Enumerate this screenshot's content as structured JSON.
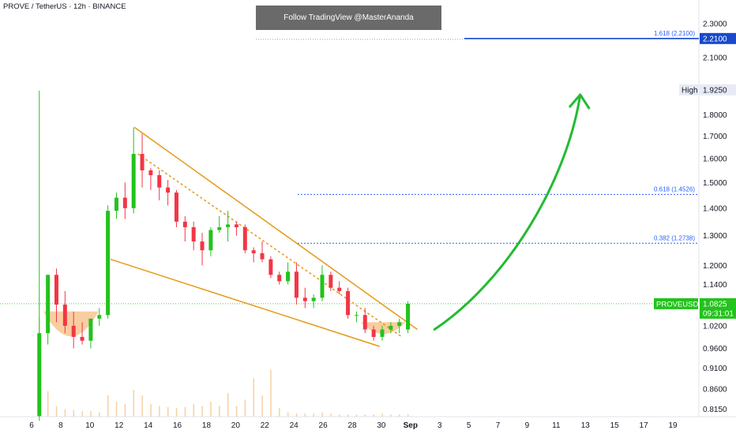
{
  "header": {
    "symbol_title": "PROVE / TetherUS · 12h · BINANCE",
    "banner_text": "Follow TradingView @MasterAnanda"
  },
  "colors": {
    "up": "#22c31b",
    "down": "#f23645",
    "volume": "#f6c48b",
    "wedge": "#e39a17",
    "bowl": "#f7c189",
    "arrow": "#22bb33",
    "fib": "#2962ff",
    "price_tag": "#22c31b"
  },
  "price_axis": {
    "ticks": [
      "2.3000",
      "2.2000",
      "2.1000",
      "1.8000",
      "1.7000",
      "1.6000",
      "1.5000",
      "1.4000",
      "1.3000",
      "1.2000",
      "1.1400",
      "1.0200",
      "0.9600",
      "0.9100",
      "0.8600",
      "0.8150"
    ],
    "high_label": "High",
    "high_value": "1.9250",
    "fib_tag_value": "2.2100",
    "current_value": "1.0825",
    "countdown": "09:31:01",
    "symbol_tag": "PROVEUSDT"
  },
  "fib_levels": [
    {
      "label": "1.618 (2.2100)",
      "price": 2.21,
      "color": "#1848cc"
    },
    {
      "label": "0.618 (1.4526)",
      "price": 1.4526
    },
    {
      "label": "0.382 (1.2738)",
      "price": 1.2738
    }
  ],
  "time_axis": {
    "labels": [
      "6",
      "8",
      "10",
      "12",
      "14",
      "16",
      "18",
      "20",
      "22",
      "24",
      "26",
      "28",
      "30",
      "Sep",
      "3",
      "5",
      "7",
      "9",
      "11",
      "13",
      "15",
      "17",
      "19"
    ]
  },
  "chart_data": {
    "type": "candlestick",
    "symbol": "PROVEUSDT",
    "interval": "12h",
    "y_scale": "log",
    "ylim": [
      0.8,
      2.36
    ],
    "x_day_range": [
      5.3,
      42.7
    ],
    "candles": [
      {
        "day": 5.75,
        "o": 0.8,
        "h": 1.92,
        "l": 0.79,
        "c": 1.0,
        "v": 0.92
      },
      {
        "day": 6.25,
        "o": 1.0,
        "h": 1.17,
        "l": 0.97,
        "c": 1.17,
        "v": 0.24
      },
      {
        "day": 6.75,
        "o": 1.17,
        "h": 1.19,
        "l": 1.03,
        "c": 1.08,
        "v": 0.1
      },
      {
        "day": 7.25,
        "o": 1.08,
        "h": 1.12,
        "l": 1.0,
        "c": 1.02,
        "v": 0.07
      },
      {
        "day": 7.75,
        "o": 1.02,
        "h": 1.06,
        "l": 0.96,
        "c": 0.99,
        "v": 0.06
      },
      {
        "day": 8.25,
        "o": 0.99,
        "h": 1.03,
        "l": 0.97,
        "c": 0.98,
        "v": 0.05
      },
      {
        "day": 8.75,
        "o": 0.98,
        "h": 1.04,
        "l": 0.96,
        "c": 1.04,
        "v": 0.05
      },
      {
        "day": 9.25,
        "o": 1.04,
        "h": 1.07,
        "l": 1.02,
        "c": 1.05,
        "v": 0.04
      },
      {
        "day": 9.75,
        "o": 1.05,
        "h": 1.41,
        "l": 1.04,
        "c": 1.39,
        "v": 0.2
      },
      {
        "day": 10.25,
        "o": 1.39,
        "h": 1.46,
        "l": 1.36,
        "c": 1.44,
        "v": 0.14
      },
      {
        "day": 10.75,
        "o": 1.44,
        "h": 1.5,
        "l": 1.36,
        "c": 1.4,
        "v": 0.12
      },
      {
        "day": 11.25,
        "o": 1.4,
        "h": 1.74,
        "l": 1.38,
        "c": 1.62,
        "v": 0.25
      },
      {
        "day": 11.75,
        "o": 1.62,
        "h": 1.71,
        "l": 1.48,
        "c": 1.55,
        "v": 0.2
      },
      {
        "day": 12.25,
        "o": 1.55,
        "h": 1.56,
        "l": 1.47,
        "c": 1.53,
        "v": 0.12
      },
      {
        "day": 12.75,
        "o": 1.53,
        "h": 1.55,
        "l": 1.43,
        "c": 1.48,
        "v": 0.1
      },
      {
        "day": 13.25,
        "o": 1.48,
        "h": 1.51,
        "l": 1.41,
        "c": 1.46,
        "v": 0.09
      },
      {
        "day": 13.75,
        "o": 1.46,
        "h": 1.47,
        "l": 1.33,
        "c": 1.35,
        "v": 0.08
      },
      {
        "day": 14.25,
        "o": 1.35,
        "h": 1.37,
        "l": 1.28,
        "c": 1.33,
        "v": 0.09
      },
      {
        "day": 14.75,
        "o": 1.33,
        "h": 1.35,
        "l": 1.25,
        "c": 1.28,
        "v": 0.12
      },
      {
        "day": 15.25,
        "o": 1.28,
        "h": 1.31,
        "l": 1.2,
        "c": 1.25,
        "v": 0.1
      },
      {
        "day": 15.75,
        "o": 1.25,
        "h": 1.33,
        "l": 1.23,
        "c": 1.32,
        "v": 0.14
      },
      {
        "day": 16.25,
        "o": 1.32,
        "h": 1.37,
        "l": 1.31,
        "c": 1.33,
        "v": 0.1
      },
      {
        "day": 16.75,
        "o": 1.33,
        "h": 1.39,
        "l": 1.28,
        "c": 1.34,
        "v": 0.22
      },
      {
        "day": 17.25,
        "o": 1.34,
        "h": 1.35,
        "l": 1.3,
        "c": 1.33,
        "v": 0.1
      },
      {
        "day": 17.75,
        "o": 1.33,
        "h": 1.34,
        "l": 1.24,
        "c": 1.25,
        "v": 0.16
      },
      {
        "day": 18.25,
        "o": 1.25,
        "h": 1.26,
        "l": 1.21,
        "c": 1.24,
        "v": 0.36
      },
      {
        "day": 18.75,
        "o": 1.24,
        "h": 1.28,
        "l": 1.21,
        "c": 1.22,
        "v": 0.2
      },
      {
        "day": 19.25,
        "o": 1.22,
        "h": 1.23,
        "l": 1.16,
        "c": 1.17,
        "v": 0.44
      },
      {
        "day": 19.75,
        "o": 1.17,
        "h": 1.18,
        "l": 1.14,
        "c": 1.15,
        "v": 0.08
      },
      {
        "day": 20.25,
        "o": 1.15,
        "h": 1.21,
        "l": 1.14,
        "c": 1.18,
        "v": 0.04
      },
      {
        "day": 20.75,
        "o": 1.18,
        "h": 1.21,
        "l": 1.08,
        "c": 1.1,
        "v": 0.03
      },
      {
        "day": 21.25,
        "o": 1.1,
        "h": 1.13,
        "l": 1.07,
        "c": 1.09,
        "v": 0.03
      },
      {
        "day": 21.75,
        "o": 1.09,
        "h": 1.11,
        "l": 1.07,
        "c": 1.1,
        "v": 0.03
      },
      {
        "day": 22.25,
        "o": 1.1,
        "h": 1.2,
        "l": 1.09,
        "c": 1.17,
        "v": 0.04
      },
      {
        "day": 22.75,
        "o": 1.17,
        "h": 1.18,
        "l": 1.12,
        "c": 1.13,
        "v": 0.03
      },
      {
        "day": 23.25,
        "o": 1.13,
        "h": 1.15,
        "l": 1.11,
        "c": 1.12,
        "v": 0.02
      },
      {
        "day": 23.75,
        "o": 1.12,
        "h": 1.13,
        "l": 1.04,
        "c": 1.05,
        "v": 0.02
      },
      {
        "day": 24.25,
        "o": 1.05,
        "h": 1.06,
        "l": 1.03,
        "c": 1.05,
        "v": 0.02
      },
      {
        "day": 24.75,
        "o": 1.05,
        "h": 1.07,
        "l": 1.0,
        "c": 1.01,
        "v": 0.02
      },
      {
        "day": 25.25,
        "o": 1.01,
        "h": 1.02,
        "l": 0.98,
        "c": 0.99,
        "v": 0.02
      },
      {
        "day": 25.75,
        "o": 0.99,
        "h": 1.02,
        "l": 0.98,
        "c": 1.01,
        "v": 0.03
      },
      {
        "day": 26.25,
        "o": 1.01,
        "h": 1.03,
        "l": 1.0,
        "c": 1.02,
        "v": 0.02
      },
      {
        "day": 26.75,
        "o": 1.02,
        "h": 1.04,
        "l": 1.0,
        "c": 1.03,
        "v": 0.02
      },
      {
        "day": 27.25,
        "o": 1.01,
        "h": 1.09,
        "l": 1.0,
        "c": 1.0825,
        "v": 0.02
      }
    ],
    "annotations": {
      "falling_wedge": {
        "upper": [
          [
            11.3,
            1.74
          ],
          [
            27.8,
            1.01
          ]
        ],
        "lower": [
          [
            9.9,
            1.22
          ],
          [
            25.6,
            0.965
          ]
        ],
        "mid": [
          [
            11.5,
            1.62
          ],
          [
            26.9,
            0.99
          ]
        ]
      },
      "arrow_curve": [
        [
          28.8,
          1.01
        ],
        [
          33.0,
          1.15
        ],
        [
          36.5,
          1.5
        ],
        [
          37.3,
          1.9
        ]
      ],
      "bowls": [
        {
          "day_center": 7.6,
          "day_half_width": 1.6,
          "top": 1.06,
          "bottom": 0.975
        },
        {
          "day_center": 25.8,
          "day_half_width": 1.3,
          "top": 1.03,
          "bottom": 0.99
        }
      ]
    }
  }
}
